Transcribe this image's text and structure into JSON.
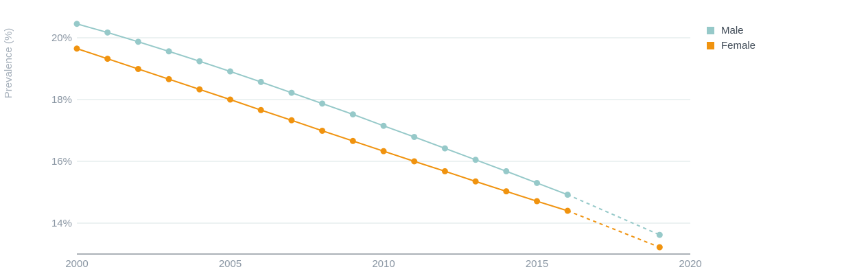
{
  "chart_data": {
    "type": "line",
    "ylabel": "Prevalence (%)",
    "xlim": [
      2000,
      2020
    ],
    "ylim": [
      13,
      21
    ],
    "x_ticks": [
      "2000",
      "2005",
      "2010",
      "2015",
      "2020"
    ],
    "y_ticks": [
      "14%",
      "16%",
      "18%",
      "20%"
    ],
    "grid": "horizontal",
    "legend_position": "top-right",
    "series": [
      {
        "name": "Male",
        "color": "#96c9c9",
        "x": [
          2000,
          2001,
          2002,
          2003,
          2004,
          2005,
          2006,
          2007,
          2008,
          2009,
          2010,
          2011,
          2012,
          2013,
          2014,
          2015,
          2016,
          2019
        ],
        "values": [
          20.45,
          20.17,
          19.87,
          19.56,
          19.24,
          18.91,
          18.57,
          18.22,
          17.87,
          17.52,
          17.15,
          16.79,
          16.42,
          16.05,
          15.68,
          15.3,
          14.92,
          13.62
        ],
        "projected_from": 2016
      },
      {
        "name": "Female",
        "color": "#f0930f",
        "x": [
          2000,
          2001,
          2002,
          2003,
          2004,
          2005,
          2006,
          2007,
          2008,
          2009,
          2010,
          2011,
          2012,
          2013,
          2014,
          2015,
          2016,
          2019
        ],
        "values": [
          19.65,
          19.32,
          18.99,
          18.66,
          18.33,
          18.0,
          17.66,
          17.33,
          16.99,
          16.66,
          16.33,
          16.0,
          15.68,
          15.35,
          15.03,
          14.71,
          14.4,
          13.22
        ],
        "projected_from": 2016
      }
    ]
  }
}
